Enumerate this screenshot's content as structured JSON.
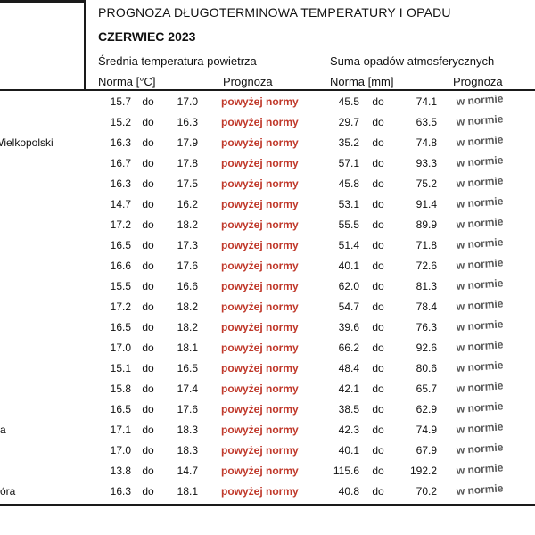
{
  "header": {
    "title": "PROGNOZA DŁUGOTERMINOWA TEMPERATURY I OPADU",
    "subtitle": "CZERWIEC 2023",
    "temp_group_label": "Średnia temperatura powietrza",
    "precip_group_label": "Suma opadów atmosferycznych",
    "temp_norm_label": "Norma [°C]",
    "temp_prog_label": "Prognoza",
    "precip_norm_label": "Norma [mm]",
    "precip_prog_label": "Prognoza"
  },
  "colors": {
    "above_norm_red": "#c0392b",
    "in_norm_gray": "#595959",
    "text": "#111111",
    "line": "#1a1a1a"
  },
  "table": {
    "range_separator": "do",
    "above_norm_text": "powyżej normy",
    "in_norm_text": "w normie",
    "rows": [
      {
        "label": "",
        "t_lo": "15.7",
        "t_hi": "17.0",
        "t_prog": "powyżej normy",
        "p_lo": "45.5",
        "p_hi": "74.1",
        "p_prog": "w normie"
      },
      {
        "label": "",
        "t_lo": "15.2",
        "t_hi": "16.3",
        "t_prog": "powyżej normy",
        "p_lo": "29.7",
        "p_hi": "63.5",
        "p_prog": "w normie"
      },
      {
        "label": "Wielkopolski",
        "t_lo": "16.3",
        "t_hi": "17.9",
        "t_prog": "powyżej normy",
        "p_lo": "35.2",
        "p_hi": "74.8",
        "p_prog": "w normie"
      },
      {
        "label": "",
        "t_lo": "16.7",
        "t_hi": "17.8",
        "t_prog": "powyżej normy",
        "p_lo": "57.1",
        "p_hi": "93.3",
        "p_prog": "w normie"
      },
      {
        "label": "",
        "t_lo": "16.3",
        "t_hi": "17.5",
        "t_prog": "powyżej normy",
        "p_lo": "45.8",
        "p_hi": "75.2",
        "p_prog": "w normie"
      },
      {
        "label": "",
        "t_lo": "14.7",
        "t_hi": "16.2",
        "t_prog": "powyżej normy",
        "p_lo": "53.1",
        "p_hi": "91.4",
        "p_prog": "w normie"
      },
      {
        "label": "",
        "t_lo": "17.2",
        "t_hi": "18.2",
        "t_prog": "powyżej normy",
        "p_lo": "55.5",
        "p_hi": "89.9",
        "p_prog": "w normie"
      },
      {
        "label": "",
        "t_lo": "16.5",
        "t_hi": "17.3",
        "t_prog": "powyżej normy",
        "p_lo": "51.4",
        "p_hi": "71.8",
        "p_prog": "w normie"
      },
      {
        "label": "",
        "t_lo": "16.6",
        "t_hi": "17.6",
        "t_prog": "powyżej normy",
        "p_lo": "40.1",
        "p_hi": "72.6",
        "p_prog": "w normie"
      },
      {
        "label": "",
        "t_lo": "15.5",
        "t_hi": "16.6",
        "t_prog": "powyżej normy",
        "p_lo": "62.0",
        "p_hi": "81.3",
        "p_prog": "w normie"
      },
      {
        "label": "",
        "t_lo": "17.2",
        "t_hi": "18.2",
        "t_prog": "powyżej normy",
        "p_lo": "54.7",
        "p_hi": "78.4",
        "p_prog": "w normie"
      },
      {
        "label": "",
        "t_lo": "16.5",
        "t_hi": "18.2",
        "t_prog": "powyżej normy",
        "p_lo": "39.6",
        "p_hi": "76.3",
        "p_prog": "w normie"
      },
      {
        "label": "",
        "t_lo": "17.0",
        "t_hi": "18.1",
        "t_prog": "powyżej normy",
        "p_lo": "66.2",
        "p_hi": "92.6",
        "p_prog": "w normie"
      },
      {
        "label": "",
        "t_lo": "15.1",
        "t_hi": "16.5",
        "t_prog": "powyżej normy",
        "p_lo": "48.4",
        "p_hi": "80.6",
        "p_prog": "w normie"
      },
      {
        "label": "",
        "t_lo": "15.8",
        "t_hi": "17.4",
        "t_prog": "powyżej normy",
        "p_lo": "42.1",
        "p_hi": "65.7",
        "p_prog": "w normie"
      },
      {
        "label": "",
        "t_lo": "16.5",
        "t_hi": "17.6",
        "t_prog": "powyżej normy",
        "p_lo": "38.5",
        "p_hi": "62.9",
        "p_prog": "w normie"
      },
      {
        "label": "a",
        "t_lo": "17.1",
        "t_hi": "18.3",
        "t_prog": "powyżej normy",
        "p_lo": "42.3",
        "p_hi": "74.9",
        "p_prog": "w normie"
      },
      {
        "label": "",
        "t_lo": "17.0",
        "t_hi": "18.3",
        "t_prog": "powyżej normy",
        "p_lo": "40.1",
        "p_hi": "67.9",
        "p_prog": "w normie"
      },
      {
        "label": "",
        "t_lo": "13.8",
        "t_hi": "14.7",
        "t_prog": "powyżej normy",
        "p_lo": "115.6",
        "p_hi": "192.2",
        "p_prog": "w normie"
      },
      {
        "label": "óra",
        "t_lo": "16.3",
        "t_hi": "18.1",
        "t_prog": "powyżej normy",
        "p_lo": "40.8",
        "p_hi": "70.2",
        "p_prog": "w normie"
      }
    ]
  }
}
